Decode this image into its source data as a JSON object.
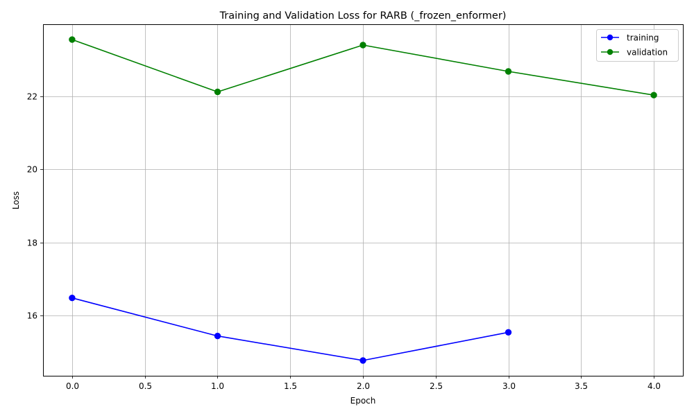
{
  "chart_data": {
    "type": "line",
    "title": "Training and Validation Loss for RARB (_frozen_enformer)",
    "xlabel": "Epoch",
    "ylabel": "Loss",
    "xlim": [
      -0.2,
      4.2
    ],
    "ylim": [
      14.35,
      23.97
    ],
    "x_ticks": [
      "0.0",
      "0.5",
      "1.0",
      "1.5",
      "2.0",
      "2.5",
      "3.0",
      "3.5",
      "4.0"
    ],
    "x_tick_values": [
      0.0,
      0.5,
      1.0,
      1.5,
      2.0,
      2.5,
      3.0,
      3.5,
      4.0
    ],
    "y_ticks": [
      "16",
      "18",
      "20",
      "22"
    ],
    "y_tick_values": [
      16,
      18,
      20,
      22
    ],
    "grid": true,
    "legend_position": "top-right",
    "series": [
      {
        "name": "training",
        "color": "#0000ff",
        "marker": "circle",
        "x": [
          0,
          1,
          2,
          3
        ],
        "values": [
          16.48,
          15.44,
          14.77,
          15.54
        ]
      },
      {
        "name": "validation",
        "color": "#008000",
        "marker": "circle",
        "x": [
          0,
          1,
          2,
          3,
          4
        ],
        "values": [
          23.55,
          22.12,
          23.4,
          22.68,
          22.03
        ]
      }
    ]
  }
}
